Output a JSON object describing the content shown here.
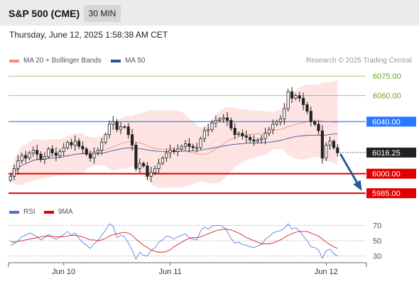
{
  "header": {
    "title": "S&P 500 (CME)",
    "timeframe": "30 MIN"
  },
  "datetime": "Thursday, June 12, 2025 1:58:38 AM CET",
  "copyright": "Research © 2025 Trading Central",
  "legend": {
    "ma20_bb": "MA 20 + Bollinger Bands",
    "ma20_color": "#f28b82",
    "ma50": "MA 50",
    "ma50_color": "#2f4f8f",
    "rsi": "RSI",
    "rsi_color": "#4c6fd8",
    "ma9": "9MA",
    "ma9_color": "#e00000"
  },
  "chart_data": [
    {
      "type": "candlestick",
      "ylim": [
        5978,
        6080
      ],
      "last_price": 6016.25,
      "levels": [
        {
          "value": 6075.0,
          "label": "6075.00",
          "style": "resistance-minor",
          "color": "#8bc34a"
        },
        {
          "value": 6060.0,
          "label": "6060.00",
          "style": "resistance-minor",
          "color": "#8bc34a"
        },
        {
          "value": 6040.0,
          "label": "6040.00",
          "style": "pivot",
          "color": "#2979ff"
        },
        {
          "value": 6000.0,
          "label": "6000.00",
          "style": "support",
          "color": "#e00000"
        },
        {
          "value": 5985.0,
          "label": "5985.00",
          "style": "support",
          "color": "#e00000"
        }
      ],
      "last_label": "6016.25",
      "x_labels": [
        "Jun 10",
        "Jun 11",
        "Jun 12"
      ],
      "forecast": {
        "from": 6016.25,
        "to": 5985.0,
        "direction": "down",
        "color": "#2a5a9a"
      },
      "close": [
        5998,
        6004,
        6010,
        6014,
        6012,
        6016,
        6018,
        6015,
        6011,
        6013,
        6019,
        6016,
        6014,
        6017,
        6020,
        6024,
        6022,
        6025,
        6021,
        6019,
        6015,
        6012,
        6016,
        6018,
        6024,
        6030,
        6038,
        6040,
        6034,
        6036,
        6036,
        6030,
        6022,
        6004,
        6008,
        6006,
        5998,
        6001,
        6004,
        6008,
        6012,
        6016,
        6018,
        6017,
        6019,
        6021,
        6023,
        6021,
        6020,
        6020,
        6027,
        6033,
        6034,
        6039,
        6041,
        6042,
        6043,
        6041,
        6035,
        6030,
        6031,
        6029,
        6028,
        6026,
        6025,
        6026,
        6027,
        6031,
        6034,
        6038,
        6040,
        6042,
        6050,
        6063,
        6058,
        6060,
        6058,
        6053,
        6048,
        6040,
        6038,
        6033,
        6012,
        6022,
        6025,
        6020,
        6016
      ],
      "rsi": {
        "ylim": [
          25,
          75
        ],
        "levels": [
          70,
          50,
          30
        ],
        "rsi": [
          44,
          46,
          50,
          55,
          57,
          60,
          58,
          55,
          51,
          54,
          58,
          54,
          52,
          55,
          58,
          62,
          57,
          60,
          53,
          48,
          44,
          40,
          46,
          50,
          57,
          64,
          72,
          69,
          54,
          57,
          55,
          47,
          38,
          26,
          35,
          31,
          30,
          37,
          41,
          48,
          51,
          56,
          55,
          52,
          55,
          57,
          59,
          54,
          52,
          51,
          63,
          68,
          65,
          69,
          70,
          70,
          68,
          62,
          53,
          47,
          48,
          45,
          44,
          42,
          41,
          43,
          45,
          52,
          55,
          60,
          62,
          63,
          66,
          72,
          65,
          67,
          63,
          56,
          50,
          42,
          41,
          38,
          27,
          37,
          39,
          33,
          30
        ],
        "ma9": [
          49,
          48,
          49,
          50,
          51,
          52,
          53,
          54,
          55,
          56,
          56,
          56,
          55,
          55,
          55,
          56,
          57,
          57,
          56,
          55,
          53,
          51,
          51,
          50,
          51,
          53,
          56,
          58,
          59,
          60,
          61,
          60,
          57,
          52,
          48,
          44,
          41,
          38,
          36,
          35,
          35,
          36,
          38,
          42,
          45,
          48,
          51,
          53,
          54,
          54,
          55,
          57,
          59,
          61,
          63,
          64,
          65,
          65,
          64,
          62,
          60,
          57,
          54,
          52,
          50,
          48,
          46,
          46,
          46,
          47,
          49,
          51,
          54,
          57,
          59,
          61,
          62,
          62,
          62,
          60,
          58,
          56,
          52,
          48,
          45,
          42,
          40
        ]
      }
    }
  ]
}
